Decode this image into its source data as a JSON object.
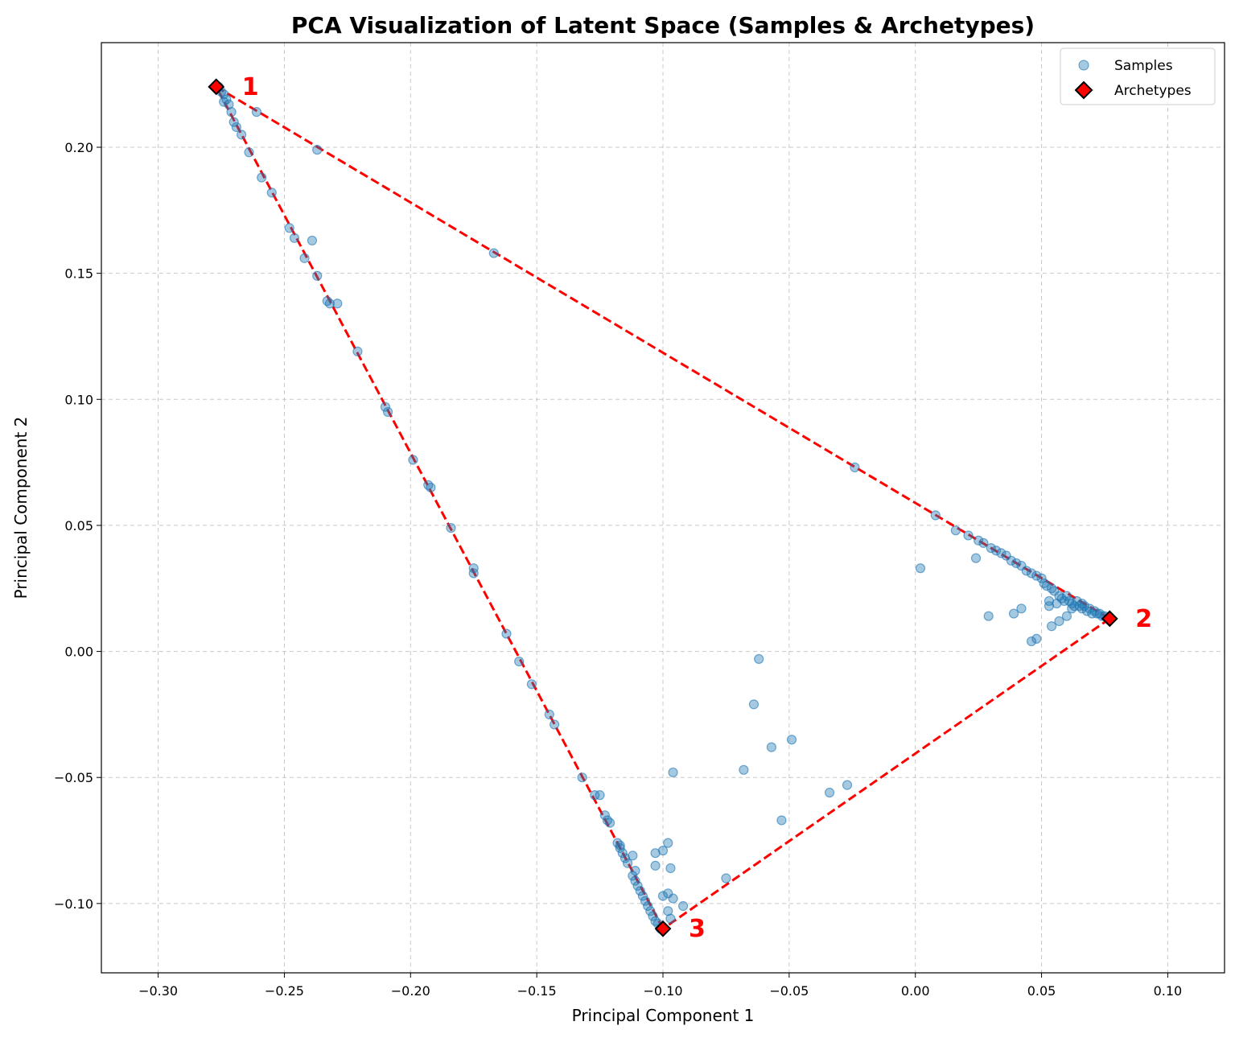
{
  "chart_data": {
    "type": "scatter",
    "title": "PCA Visualization of Latent Space (Samples & Archetypes)",
    "xlabel": "Principal Component 1",
    "ylabel": "Principal Component 2",
    "xlim": [
      -0.3225,
      0.1225
    ],
    "ylim": [
      -0.1275,
      0.2415
    ],
    "xticks": [
      -0.3,
      -0.25,
      -0.2,
      -0.15,
      -0.1,
      -0.05,
      0.0,
      0.05,
      0.1
    ],
    "xtick_labels": [
      "−0.30",
      "−0.25",
      "−0.20",
      "−0.15",
      "−0.10",
      "−0.05",
      "0.00",
      "0.05",
      "0.10"
    ],
    "yticks": [
      -0.1,
      -0.05,
      0.0,
      0.05,
      0.1,
      0.15,
      0.2
    ],
    "ytick_labels": [
      "−0.10",
      "−0.05",
      "0.00",
      "0.05",
      "0.10",
      "0.15",
      "0.20"
    ],
    "grid": true,
    "legend_position": "top-right",
    "colors": {
      "samples": "#1f77b4",
      "archetypes": "#ff0000",
      "hull": "#ff0000",
      "labels": "#ff0000"
    },
    "series": [
      {
        "name": "Samples",
        "marker": "circle",
        "points": [
          [
            -0.276,
            0.224
          ],
          [
            -0.275,
            0.222
          ],
          [
            -0.274,
            0.221
          ],
          [
            -0.273,
            0.219
          ],
          [
            -0.274,
            0.218
          ],
          [
            -0.272,
            0.217
          ],
          [
            -0.271,
            0.214
          ],
          [
            -0.261,
            0.214
          ],
          [
            -0.27,
            0.21
          ],
          [
            -0.269,
            0.208
          ],
          [
            -0.267,
            0.205
          ],
          [
            -0.264,
            0.198
          ],
          [
            -0.237,
            0.199
          ],
          [
            -0.259,
            0.188
          ],
          [
            -0.255,
            0.182
          ],
          [
            -0.248,
            0.168
          ],
          [
            -0.246,
            0.164
          ],
          [
            -0.239,
            0.163
          ],
          [
            -0.242,
            0.156
          ],
          [
            -0.237,
            0.149
          ],
          [
            -0.167,
            0.158
          ],
          [
            -0.233,
            0.139
          ],
          [
            -0.232,
            0.138
          ],
          [
            -0.229,
            0.138
          ],
          [
            -0.221,
            0.119
          ],
          [
            -0.21,
            0.097
          ],
          [
            -0.209,
            0.095
          ],
          [
            -0.199,
            0.076
          ],
          [
            -0.193,
            0.066
          ],
          [
            -0.192,
            0.065
          ],
          [
            -0.184,
            0.049
          ],
          [
            -0.175,
            0.033
          ],
          [
            -0.175,
            0.031
          ],
          [
            -0.162,
            0.007
          ],
          [
            -0.157,
            -0.004
          ],
          [
            -0.152,
            -0.013
          ],
          [
            -0.145,
            -0.025
          ],
          [
            -0.143,
            -0.029
          ],
          [
            -0.132,
            -0.05
          ],
          [
            -0.127,
            -0.057
          ],
          [
            -0.125,
            -0.057
          ],
          [
            -0.123,
            -0.065
          ],
          [
            -0.122,
            -0.067
          ],
          [
            -0.121,
            -0.068
          ],
          [
            -0.118,
            -0.076
          ],
          [
            -0.117,
            -0.077
          ],
          [
            -0.117,
            -0.078
          ],
          [
            -0.116,
            -0.08
          ],
          [
            -0.115,
            -0.082
          ],
          [
            -0.114,
            -0.084
          ],
          [
            -0.112,
            -0.081
          ],
          [
            -0.111,
            -0.087
          ],
          [
            -0.112,
            -0.089
          ],
          [
            -0.111,
            -0.091
          ],
          [
            -0.11,
            -0.093
          ],
          [
            -0.109,
            -0.095
          ],
          [
            -0.108,
            -0.097
          ],
          [
            -0.107,
            -0.099
          ],
          [
            -0.106,
            -0.101
          ],
          [
            -0.105,
            -0.103
          ],
          [
            -0.104,
            -0.105
          ],
          [
            -0.103,
            -0.107
          ],
          [
            -0.102,
            -0.108
          ],
          [
            -0.101,
            -0.11
          ],
          [
            -0.103,
            -0.08
          ],
          [
            -0.1,
            -0.079
          ],
          [
            -0.103,
            -0.085
          ],
          [
            -0.098,
            -0.076
          ],
          [
            -0.097,
            -0.086
          ],
          [
            -0.1,
            -0.097
          ],
          [
            -0.098,
            -0.096
          ],
          [
            -0.096,
            -0.098
          ],
          [
            -0.098,
            -0.103
          ],
          [
            -0.097,
            -0.106
          ],
          [
            -0.092,
            -0.101
          ],
          [
            -0.096,
            -0.048
          ],
          [
            -0.075,
            -0.09
          ],
          [
            -0.068,
            -0.047
          ],
          [
            -0.064,
            -0.021
          ],
          [
            -0.062,
            -0.003
          ],
          [
            -0.057,
            -0.038
          ],
          [
            -0.053,
            -0.067
          ],
          [
            -0.049,
            -0.035
          ],
          [
            -0.034,
            -0.056
          ],
          [
            -0.027,
            -0.053
          ],
          [
            -0.024,
            0.073
          ],
          [
            0.002,
            0.033
          ],
          [
            0.008,
            0.054
          ],
          [
            0.016,
            0.048
          ],
          [
            0.021,
            0.046
          ],
          [
            0.024,
            0.037
          ],
          [
            0.025,
            0.044
          ],
          [
            0.027,
            0.043
          ],
          [
            0.029,
            0.014
          ],
          [
            0.03,
            0.041
          ],
          [
            0.032,
            0.04
          ],
          [
            0.034,
            0.039
          ],
          [
            0.036,
            0.038
          ],
          [
            0.038,
            0.036
          ],
          [
            0.039,
            0.015
          ],
          [
            0.04,
            0.035
          ],
          [
            0.042,
            0.034
          ],
          [
            0.042,
            0.017
          ],
          [
            0.044,
            0.032
          ],
          [
            0.046,
            0.031
          ],
          [
            0.046,
            0.004
          ],
          [
            0.048,
            0.03
          ],
          [
            0.048,
            0.005
          ],
          [
            0.05,
            0.029
          ],
          [
            0.051,
            0.027
          ],
          [
            0.052,
            0.026
          ],
          [
            0.053,
            0.02
          ],
          [
            0.053,
            0.018
          ],
          [
            0.054,
            0.025
          ],
          [
            0.054,
            0.01
          ],
          [
            0.055,
            0.024
          ],
          [
            0.056,
            0.019
          ],
          [
            0.057,
            0.022
          ],
          [
            0.057,
            0.012
          ],
          [
            0.058,
            0.021
          ],
          [
            0.059,
            0.02
          ],
          [
            0.06,
            0.014
          ],
          [
            0.06,
            0.022
          ],
          [
            0.061,
            0.02
          ],
          [
            0.062,
            0.017
          ],
          [
            0.062,
            0.019
          ],
          [
            0.063,
            0.018
          ],
          [
            0.064,
            0.02
          ],
          [
            0.065,
            0.018
          ],
          [
            0.066,
            0.019
          ],
          [
            0.066,
            0.017
          ],
          [
            0.067,
            0.018
          ],
          [
            0.068,
            0.016
          ],
          [
            0.069,
            0.017
          ],
          [
            0.07,
            0.015
          ],
          [
            0.071,
            0.016
          ],
          [
            0.072,
            0.015
          ],
          [
            0.073,
            0.015
          ],
          [
            0.074,
            0.014
          ],
          [
            0.075,
            0.014
          ]
        ]
      },
      {
        "name": "Archetypes",
        "marker": "diamond",
        "points": [
          [
            -0.277,
            0.224
          ],
          [
            0.077,
            0.013
          ],
          [
            -0.1,
            -0.11
          ]
        ],
        "labels": [
          "1",
          "2",
          "3"
        ]
      }
    ],
    "hull_order": [
      0,
      1,
      2
    ]
  }
}
